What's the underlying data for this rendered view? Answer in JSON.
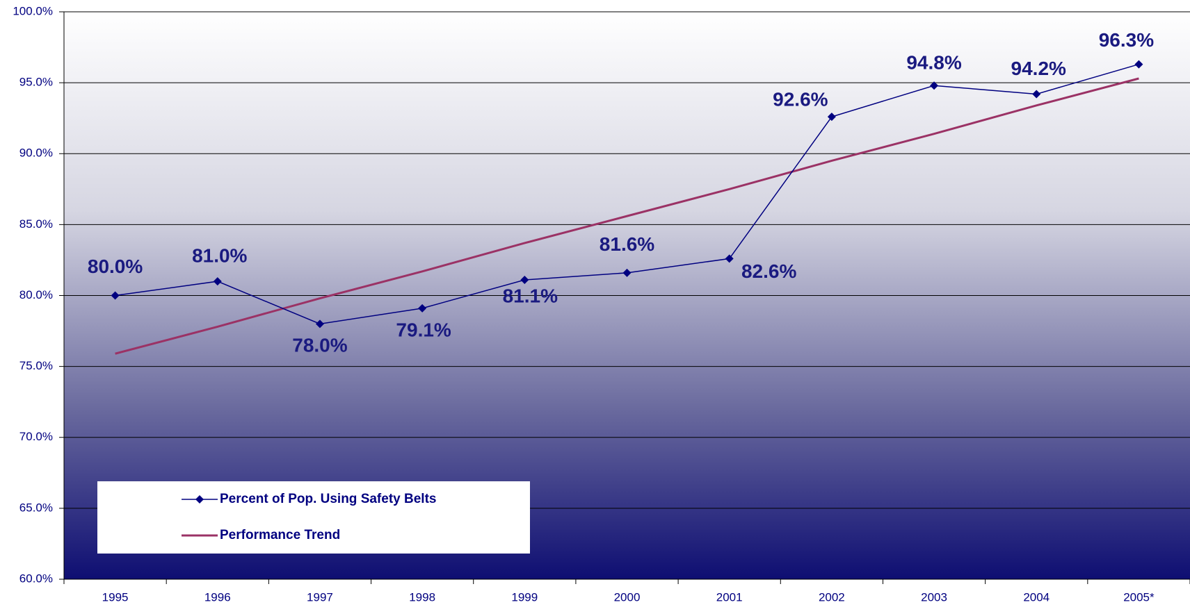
{
  "chart_data": {
    "type": "line",
    "categories": [
      "1995",
      "1996",
      "1997",
      "1998",
      "1999",
      "2000",
      "2001",
      "2002",
      "2003",
      "2004",
      "2005*"
    ],
    "series": [
      {
        "name": "Percent of Pop. Using Safety Belts",
        "color": "#000080",
        "marker": "diamond",
        "values": [
          80.0,
          81.0,
          78.0,
          79.1,
          81.1,
          81.6,
          82.6,
          92.6,
          94.8,
          94.2,
          96.3
        ],
        "value_labels": [
          "80.0%",
          "81.0%",
          "78.0%",
          "79.1%",
          "81.1%",
          "81.6%",
          "82.6%",
          "92.6%",
          "94.8%",
          "94.2%",
          "96.3%"
        ]
      },
      {
        "name": "Performance Trend",
        "color": "#9b3265",
        "values": [
          75.9,
          77.8,
          79.8,
          81.7,
          83.7,
          85.6,
          87.5,
          89.5,
          91.4,
          93.4,
          95.3
        ]
      }
    ],
    "ylim": [
      60,
      100
    ],
    "yticks": [
      {
        "value": 60,
        "label": "60.0%"
      },
      {
        "value": 65,
        "label": "65.0%"
      },
      {
        "value": 70,
        "label": "70.0%"
      },
      {
        "value": 75,
        "label": "75.0%"
      },
      {
        "value": 80,
        "label": "80.0%"
      },
      {
        "value": 85,
        "label": "85.0%"
      },
      {
        "value": 90,
        "label": "90.0%"
      },
      {
        "value": 95,
        "label": "95.0%"
      },
      {
        "value": 100,
        "label": "100.0%"
      }
    ],
    "grid": true,
    "legend": "lower left"
  }
}
